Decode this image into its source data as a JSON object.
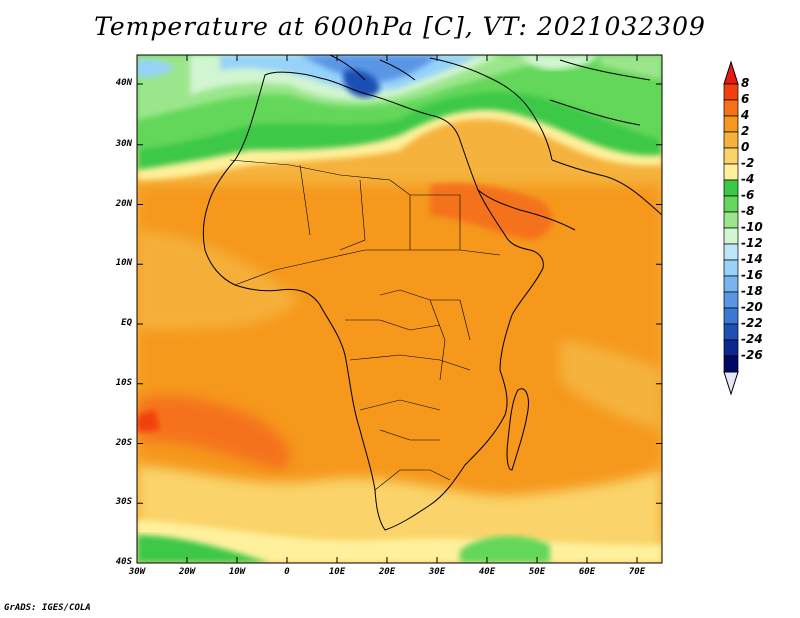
{
  "title": "Temperature at 600hPa [C], VT: 2021032309",
  "credit": "GrADS: IGES/COLA",
  "lat_labels": [
    "40N",
    "30N",
    "20N",
    "10N",
    "EQ",
    "10S",
    "20S",
    "30S",
    "40S"
  ],
  "lon_labels": [
    "30W",
    "20W",
    "10W",
    "0",
    "10E",
    "20E",
    "30E",
    "40E",
    "50E",
    "60E",
    "70E"
  ],
  "colorbar": {
    "labels": [
      "8",
      "6",
      "4",
      "2",
      "0",
      "-2",
      "-4",
      "-6",
      "-8",
      "-10",
      "-12",
      "-14",
      "-16",
      "-18",
      "-20",
      "-22",
      "-24",
      "-26"
    ],
    "colors": [
      "#e8190f",
      "#f2400f",
      "#f5721a",
      "#f5981f",
      "#f5b23d",
      "#fad46b",
      "#fff09c",
      "#3cc846",
      "#64d75a",
      "#9be68c",
      "#d2f5d2",
      "#bee6fa",
      "#96d2fa",
      "#78b4f0",
      "#5a96e6",
      "#3c78d2",
      "#1e50b4",
      "#0a2890",
      "#000a64",
      "#e6e6fa"
    ]
  }
}
